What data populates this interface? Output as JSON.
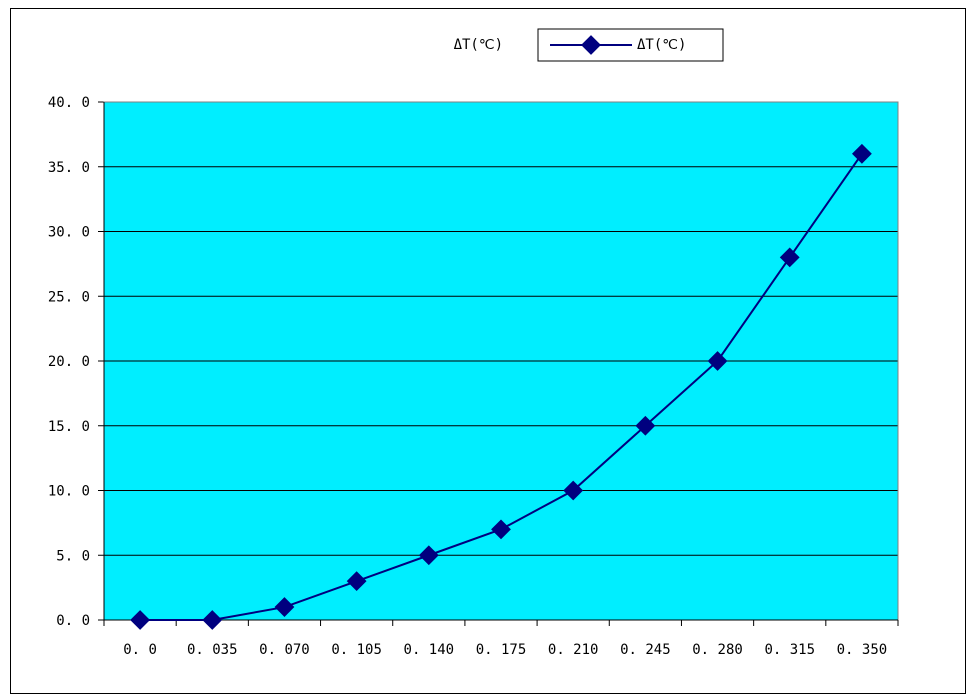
{
  "chart_data": {
    "type": "line",
    "title": "ΔT(℃)",
    "xlabel": "",
    "ylabel": "",
    "categories": [
      "0. 0",
      "0. 035",
      "0. 070",
      "0. 105",
      "0. 140",
      "0. 175",
      "0. 210",
      "0. 245",
      "0. 280",
      "0. 315",
      "0. 350"
    ],
    "x": [
      0.0,
      0.035,
      0.07,
      0.105,
      0.14,
      0.175,
      0.21,
      0.245,
      0.28,
      0.315,
      0.35
    ],
    "series": [
      {
        "name": "ΔT(℃)",
        "values": [
          0,
          0,
          1,
          3,
          5,
          7,
          10,
          15,
          20,
          28,
          36
        ]
      }
    ],
    "yticks": [
      "0. 0",
      "5. 0",
      "10. 0",
      "15. 0",
      "20. 0",
      "25. 0",
      "30. 0",
      "35. 0",
      "40. 0"
    ],
    "ylim": [
      0,
      40
    ],
    "grid": true,
    "legend": "top-right",
    "colors": {
      "plot_background": "#00eeff",
      "line": "#00007f",
      "grid": "#000000"
    }
  }
}
